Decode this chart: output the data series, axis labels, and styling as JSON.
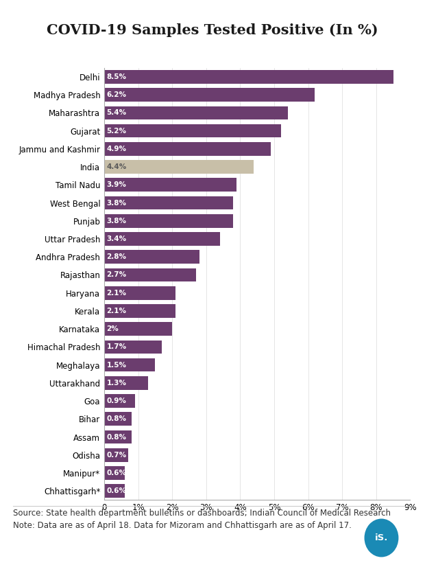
{
  "title": "COVID-19 Samples Tested Positive (In %)",
  "categories": [
    "Delhi",
    "Madhya Pradesh",
    "Maharashtra",
    "Gujarat",
    "Jammu and Kashmir",
    "India",
    "Tamil Nadu",
    "West Bengal",
    "Punjab",
    "Uttar Pradesh",
    "Andhra Pradesh",
    "Rajasthan",
    "Haryana",
    "Kerala",
    "Karnataka",
    "Himachal Pradesh",
    "Meghalaya",
    "Uttarakhand",
    "Goa",
    "Bihar",
    "Assam",
    "Odisha",
    "Manipur*",
    "Chhattisgarh*"
  ],
  "values": [
    8.5,
    6.2,
    5.4,
    5.2,
    4.9,
    4.4,
    3.9,
    3.8,
    3.8,
    3.4,
    2.8,
    2.7,
    2.1,
    2.1,
    2.0,
    1.7,
    1.5,
    1.3,
    0.9,
    0.8,
    0.8,
    0.7,
    0.6,
    0.6
  ],
  "bar_colors": [
    "#6b3d6e",
    "#6b3d6e",
    "#6b3d6e",
    "#6b3d6e",
    "#6b3d6e",
    "#c8bfa8",
    "#6b3d6e",
    "#6b3d6e",
    "#6b3d6e",
    "#6b3d6e",
    "#6b3d6e",
    "#6b3d6e",
    "#6b3d6e",
    "#6b3d6e",
    "#6b3d6e",
    "#6b3d6e",
    "#6b3d6e",
    "#6b3d6e",
    "#6b3d6e",
    "#6b3d6e",
    "#6b3d6e",
    "#6b3d6e",
    "#6b3d6e",
    "#6b3d6e"
  ],
  "labels": [
    "8.5%",
    "6.2%",
    "5.4%",
    "5.2%",
    "4.9%",
    "4.4%",
    "3.9%",
    "3.8%",
    "3.8%",
    "3.4%",
    "2.8%",
    "2.7%",
    "2.1%",
    "2.1%",
    "2%",
    "1.7%",
    "1.5%",
    "1.3%",
    "0.9%",
    "0.8%",
    "0.8%",
    "0.7%",
    "0.6%",
    "0.6%"
  ],
  "xlim": [
    0,
    9
  ],
  "xticks": [
    0,
    1,
    2,
    3,
    4,
    5,
    6,
    7,
    8,
    9
  ],
  "xtick_labels": [
    "0",
    "1%",
    "2%",
    "3%",
    "4%",
    "5%",
    "6%",
    "7%",
    "8%",
    "9%"
  ],
  "source_text": "Source: State health department bulletins or dashboards; Indian Council of Medical Research\nNote: Data are as of April 18. Data for Mizoram and Chhattisgarh are as of April 17.",
  "logo_color": "#1a8ab5",
  "logo_text": "iS.",
  "bg_color": "#ffffff",
  "bar_text_color": "#ffffff",
  "india_bar_color": "#c8bfa8",
  "title_fontsize": 15,
  "label_fontsize": 7.5,
  "tick_fontsize": 8.5,
  "source_fontsize": 8.5
}
